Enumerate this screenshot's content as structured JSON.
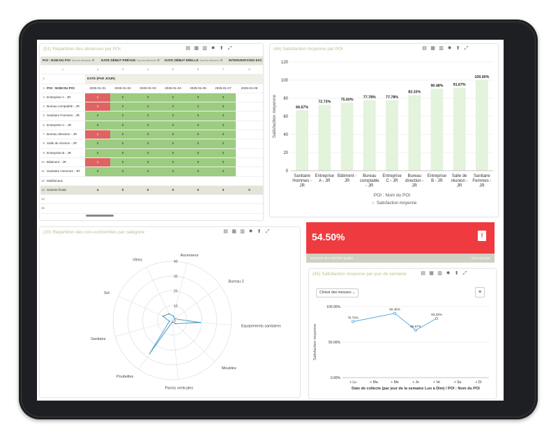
{
  "absences": {
    "title": "(51) Répartition des absences par POI",
    "filters": [
      {
        "label": "POI : NOM DU POI",
        "sub": "Tous les éléments"
      },
      {
        "label": "DATE DÉBUT PRÉVUE",
        "sub": "Tous les éléments"
      },
      {
        "label": "DATE DÉBUT RÉELLE",
        "sub": "Tous les éléments"
      },
      {
        "label": "INTERVENTIONS EXC",
        "sub": ""
      }
    ],
    "col_numbers": [
      "1",
      "2",
      "3",
      "4",
      "5",
      "6",
      "7",
      "8"
    ],
    "date_group_label": "DATE (PAR JOUR)",
    "row_header_label": "POI : NOM DU POI",
    "dates": [
      "2025-01-01",
      "2025-01-02",
      "2025-01-03",
      "2025-01-04",
      "2025-01-05",
      "2025-01-07",
      "2025-01-08"
    ],
    "rows": [
      {
        "n": "3",
        "label": "Entreprise A - JR",
        "values": [
          "1",
          "0",
          "0",
          "0",
          "0",
          "0",
          ""
        ],
        "status": [
          "red",
          "green",
          "green",
          "green",
          "green",
          "green",
          ""
        ]
      },
      {
        "n": "4",
        "label": "Bureau comptable - JR",
        "values": [
          "1",
          "0",
          "0",
          "0",
          "0",
          "0",
          ""
        ],
        "status": [
          "red",
          "green",
          "green",
          "green",
          "green",
          "green",
          ""
        ]
      },
      {
        "n": "5",
        "label": "Sanitaire Femmes - JR",
        "values": [
          "0",
          "0",
          "0",
          "0",
          "0",
          "0",
          ""
        ],
        "status": [
          "green",
          "green",
          "green",
          "green",
          "green",
          "green",
          ""
        ]
      },
      {
        "n": "6",
        "label": "Entreprise C - JR",
        "values": [
          "0",
          "0",
          "0",
          "0",
          "0",
          "0",
          ""
        ],
        "status": [
          "green",
          "green",
          "green",
          "green",
          "green",
          "green",
          ""
        ]
      },
      {
        "n": "7",
        "label": "Bureau direction - JR",
        "values": [
          "1",
          "0",
          "0",
          "0",
          "0",
          "0",
          ""
        ],
        "status": [
          "red",
          "green",
          "green",
          "green",
          "green",
          "green",
          ""
        ]
      },
      {
        "n": "8",
        "label": "Salle de réunion - JR",
        "values": [
          "0",
          "0",
          "0",
          "0",
          "0",
          "0",
          ""
        ],
        "status": [
          "green",
          "green",
          "green",
          "green",
          "green",
          "green",
          ""
        ]
      },
      {
        "n": "9",
        "label": "Entreprise B - JR",
        "values": [
          "0",
          "0",
          "0",
          "0",
          "0",
          "0",
          ""
        ],
        "status": [
          "green",
          "green",
          "green",
          "green",
          "green",
          "green",
          ""
        ]
      },
      {
        "n": "10",
        "label": "Bâtiment - JR",
        "values": [
          "1",
          "0",
          "0",
          "0",
          "0",
          "0",
          ""
        ],
        "status": [
          "red",
          "green",
          "green",
          "green",
          "green",
          "green",
          ""
        ]
      },
      {
        "n": "11",
        "label": "Sanitaire Hommes - JR",
        "values": [
          "0",
          "0",
          "0",
          "0",
          "0",
          "0",
          ""
        ],
        "status": [
          "green",
          "green",
          "green",
          "green",
          "green",
          "green",
          ""
        ]
      },
      {
        "n": "12",
        "label": "Multilocaux",
        "values": [
          "",
          "",
          "",
          "",
          "",
          "",
          ""
        ],
        "status": [
          "",
          "",
          "",
          "",
          "",
          "",
          ""
        ]
      }
    ],
    "total_row": {
      "n": "13",
      "label": "Somme finale",
      "values": [
        "4",
        "0",
        "0",
        "0",
        "0",
        "0",
        "0"
      ]
    },
    "empty_rows": [
      "14",
      "15"
    ]
  },
  "satisfaction_poi": {
    "title": "(46) Satisfaction moyenne par POI",
    "chart_data": {
      "type": "bar",
      "categories": [
        "Sanitaire Hommes - JR",
        "Entreprise A - JR",
        "Bâtiment - JR",
        "Bureau comptable - JR",
        "Entreprise C - JR",
        "Bureau direction - JR",
        "Entreprise B - JR",
        "Salle de réunion - JR",
        "Sanitaire Femmes - JR"
      ],
      "category_lines": [
        [
          "Sanitaire",
          "Hommes -",
          "JR"
        ],
        [
          "Entreprise",
          "A - JR"
        ],
        [
          "Bâtiment -",
          "JR"
        ],
        [
          "Bureau",
          "comptable",
          "- JR"
        ],
        [
          "Entreprise",
          "C - JR"
        ],
        [
          "Bureau",
          "direction -",
          "JR"
        ],
        [
          "Entreprise",
          "B - JR"
        ],
        [
          "Salle de",
          "réunion -",
          "JR"
        ],
        [
          "Sanitaire",
          "Femmes -",
          "JR"
        ]
      ],
      "values": [
        66.67,
        72.73,
        75.0,
        77.78,
        77.78,
        83.33,
        90.48,
        91.67,
        100.0
      ],
      "value_labels": [
        "66.67%",
        "72.73%",
        "75.00%",
        "77.78%",
        "77.78%",
        "83.33%",
        "90.48%",
        "91.67%",
        "100.00%"
      ],
      "ylim": [
        0,
        120
      ],
      "yticks": [
        "0",
        "20",
        "40",
        "60",
        "80",
        "100",
        "120"
      ],
      "ylabel": "Satisfaction moyenne",
      "xlabel": "POI : Nom du POI",
      "legend": "Satisfaction moyenne",
      "bar_color": "#e3f3dc"
    }
  },
  "kpi": {
    "value": "54.50%",
    "label": "Moyenne des contrôles qualité",
    "period": "sur la période",
    "color": "#ef3b3f"
  },
  "non_conformites": {
    "title": "(20) Répartition des non-conformités par catégorie",
    "chart_data": {
      "type": "radar",
      "categories": [
        "Ascenseur",
        "Bureau 2",
        "Equipements sanitaires",
        "Meubles",
        "Parois verticales",
        "Poubelles",
        "Sanitaire",
        "Sol",
        "Vitres"
      ],
      "values": [
        3,
        2,
        19,
        3,
        1,
        27,
        2,
        7,
        5
      ],
      "rlim": [
        0,
        40
      ],
      "rticks": [
        "0",
        "10",
        "20",
        "30",
        "40"
      ],
      "color": "#3f95c8"
    }
  },
  "satisfaction_jour": {
    "title": "(45) Satisfaction moyenne par jour de semaine",
    "measure_button": "Choisir des mesures",
    "chart_data": {
      "type": "line",
      "categories": [
        "+ Lu",
        "+ Ma",
        "+ Me",
        "+ Je",
        "+ Ve",
        "+ Sa",
        "+ Di"
      ],
      "values": [
        78.79,
        null,
        90.48,
        66.67,
        83.33,
        null,
        null
      ],
      "value_labels": [
        "78.79%",
        "",
        "90.48%",
        "66.67%",
        "83.33%",
        "",
        ""
      ],
      "ylim": [
        0,
        100
      ],
      "yticks": [
        "0.00%",
        "50.00%",
        "100.00%"
      ],
      "ylabel": "Satisfaction moyenne",
      "xlabel": "Date de collecte (par jour de la semaine Lun à Dim) / POI : Nom du POI",
      "color": "#4aa3df"
    }
  }
}
